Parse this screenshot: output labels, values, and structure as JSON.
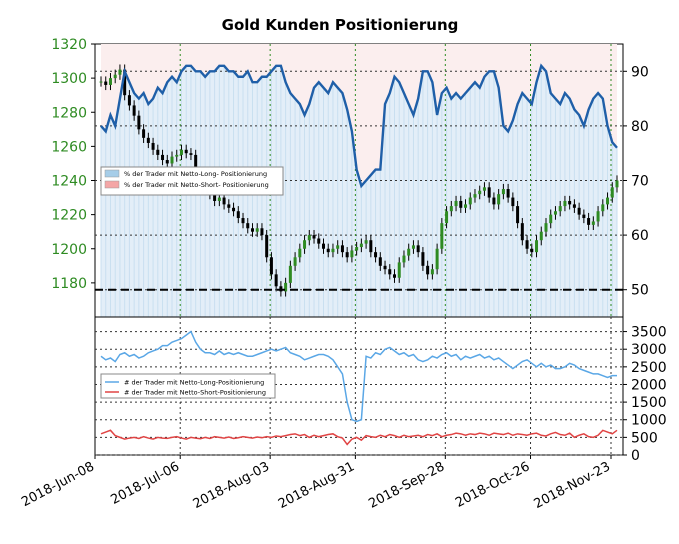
{
  "chart_data": [
    {
      "type": "line",
      "title": "Gold Kunden Positionierung",
      "x_dates": [
        "2018-Jun-08",
        "2018-Jul-06",
        "2018-Aug-03",
        "2018-Aug-31",
        "2018-Sep-28",
        "2018-Oct-26",
        "2018-Nov-23"
      ],
      "left_axis": {
        "ylim": [
          1160,
          1320
        ],
        "ticks": [
          1180,
          1200,
          1220,
          1240,
          1260,
          1280,
          1300,
          1320
        ],
        "color": "#2e8b22"
      },
      "right_axis": {
        "ylim": [
          45,
          95
        ],
        "ticks": [
          50,
          60,
          70,
          80,
          90
        ]
      },
      "grid": true,
      "legend": {
        "placement": "center-left",
        "items": [
          "% der Trader mit Netto-Long- Positionierung",
          "% der Trader mit Netto-Short- Positionierung"
        ],
        "colors": [
          "#a6cde8",
          "#f4a6a6"
        ]
      },
      "price_candles_close": [
        1298,
        1296,
        1300,
        1302,
        1305,
        1290,
        1284,
        1278,
        1270,
        1265,
        1262,
        1258,
        1255,
        1252,
        1250,
        1254,
        1255,
        1258,
        1256,
        1255,
        1245,
        1242,
        1238,
        1232,
        1228,
        1230,
        1226,
        1224,
        1222,
        1218,
        1215,
        1212,
        1210,
        1212,
        1208,
        1195,
        1185,
        1178,
        1175,
        1180,
        1190,
        1195,
        1200,
        1205,
        1208,
        1206,
        1203,
        1200,
        1198,
        1200,
        1202,
        1198,
        1195,
        1199,
        1201,
        1203,
        1205,
        1198,
        1195,
        1190,
        1188,
        1185,
        1183,
        1192,
        1196,
        1200,
        1202,
        1198,
        1190,
        1185,
        1188,
        1200,
        1215,
        1222,
        1225,
        1228,
        1224,
        1226,
        1230,
        1232,
        1234,
        1236,
        1230,
        1226,
        1232,
        1235,
        1230,
        1225,
        1215,
        1205,
        1200,
        1198,
        1205,
        1210,
        1215,
        1220,
        1222,
        1225,
        1228,
        1226,
        1224,
        1220,
        1218,
        1214,
        1216,
        1222,
        1226,
        1230,
        1236,
        1240
      ],
      "long_pct": [
        80,
        79,
        82,
        80,
        85,
        90,
        88,
        86,
        85,
        86,
        84,
        85,
        87,
        86,
        88,
        89,
        88,
        90,
        91,
        91,
        90,
        90,
        89,
        90,
        90,
        91,
        91,
        90,
        90,
        89,
        89,
        90,
        88,
        88,
        89,
        89,
        90,
        91,
        91,
        88,
        86,
        85,
        84,
        82,
        84,
        87,
        88,
        87,
        86,
        88,
        87,
        86,
        83,
        79,
        72,
        69,
        70,
        71,
        72,
        72,
        84,
        86,
        89,
        88,
        86,
        84,
        82,
        85,
        90,
        90,
        88,
        82,
        86,
        87,
        85,
        86,
        85,
        86,
        87,
        88,
        87,
        89,
        90,
        90,
        87,
        80,
        79,
        81,
        84,
        86,
        85,
        84,
        88,
        91,
        90,
        86,
        85,
        84,
        86,
        85,
        83,
        82,
        80,
        83,
        85,
        86,
        85,
        80,
        77,
        76
      ],
      "sma_markers": [
        {
          "side": "right",
          "label": "50",
          "value": 50
        }
      ]
    },
    {
      "type": "line",
      "right_axis": {
        "ylim": [
          0,
          3800
        ],
        "ticks": [
          0,
          500,
          1000,
          1500,
          2000,
          2500,
          3000,
          3500
        ]
      },
      "grid": true,
      "legend": {
        "placement": "center-left",
        "items": [
          "# der Trader mit Netto-Long-Positionierung",
          "# der Trader mit Netto-Short-Positionierung"
        ],
        "colors": [
          "#5aa7e6",
          "#e04444"
        ]
      },
      "series": [
        {
          "name": "# der Trader mit Netto-Long-Positionierung",
          "color": "#5aa7e6",
          "values": [
            2800,
            2700,
            2750,
            2650,
            2850,
            2900,
            2800,
            2850,
            2750,
            2800,
            2900,
            2950,
            3000,
            3100,
            3100,
            3200,
            3250,
            3300,
            3400,
            3500,
            3200,
            3000,
            2900,
            2900,
            2850,
            2950,
            2850,
            2900,
            2850,
            2900,
            2850,
            2800,
            2800,
            2850,
            2900,
            2950,
            3000,
            2950,
            3000,
            3050,
            2900,
            2850,
            2800,
            2700,
            2750,
            2800,
            2850,
            2850,
            2800,
            2700,
            2500,
            2300,
            1500,
            1000,
            950,
            1000,
            2800,
            2750,
            2900,
            2850,
            3000,
            3050,
            2950,
            2850,
            2900,
            2800,
            2850,
            2700,
            2650,
            2700,
            2800,
            2750,
            2850,
            2900,
            2800,
            2850,
            2700,
            2800,
            2750,
            2800,
            2850,
            2750,
            2800,
            2700,
            2750,
            2650,
            2550,
            2450,
            2550,
            2650,
            2700,
            2600,
            2500,
            2600,
            2500,
            2550,
            2450,
            2450,
            2500,
            2600,
            2550,
            2450,
            2400,
            2350,
            2300,
            2300,
            2250,
            2200,
            2250,
            2250
          ]
        },
        {
          "name": "# der Trader mit Netto-Short-Positionierung",
          "color": "#e04444",
          "values": [
            600,
            650,
            700,
            550,
            500,
            450,
            480,
            500,
            470,
            520,
            480,
            450,
            500,
            480,
            470,
            500,
            520,
            480,
            450,
            500,
            480,
            460,
            500,
            470,
            520,
            500,
            480,
            510,
            470,
            490,
            520,
            500,
            480,
            510,
            490,
            520,
            500,
            540,
            520,
            550,
            580,
            600,
            550,
            580,
            500,
            560,
            520,
            550,
            580,
            600,
            520,
            480,
            300,
            450,
            500,
            420,
            550,
            520,
            500,
            560,
            520,
            580,
            550,
            500,
            560,
            520,
            540,
            560,
            520,
            580,
            550,
            600,
            520,
            560,
            580,
            620,
            600,
            560,
            600,
            580,
            620,
            600,
            560,
            620,
            600,
            580,
            620,
            560,
            600,
            580,
            560,
            600,
            620,
            560,
            540,
            600,
            640,
            580,
            560,
            620,
            500,
            560,
            600,
            520,
            500,
            560,
            700,
            650,
            600,
            700
          ]
        }
      ]
    }
  ]
}
